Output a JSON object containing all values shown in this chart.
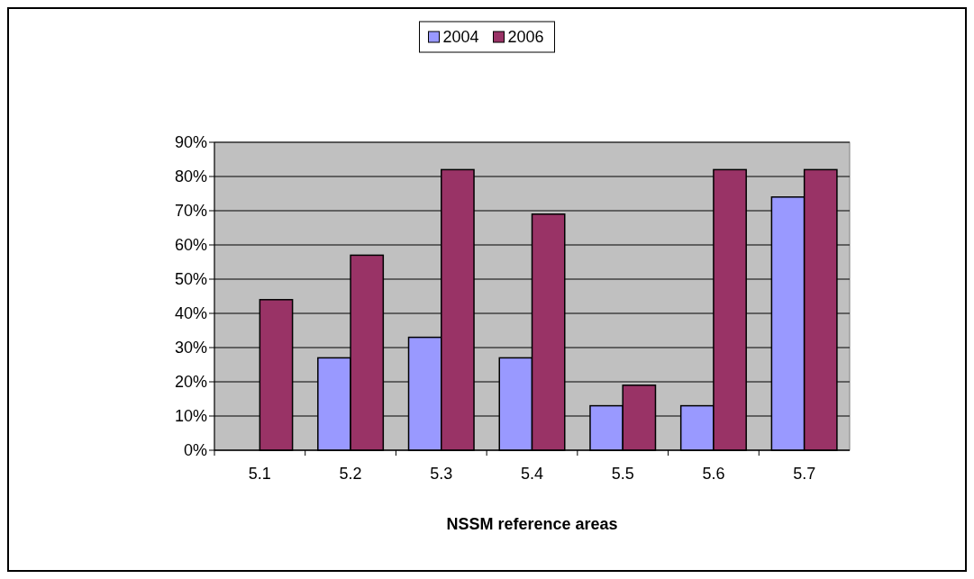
{
  "chart_data": {
    "type": "bar",
    "xlabel": "NSSM reference areas",
    "categories": [
      "5.1",
      "5.2",
      "5.3",
      "5.4",
      "5.5",
      "5.6",
      "5.7"
    ],
    "series": [
      {
        "name": "2004",
        "color": "#9999ff",
        "values": [
          0,
          27,
          33,
          27,
          13,
          13,
          74
        ]
      },
      {
        "name": "2006",
        "color": "#993366",
        "values": [
          44,
          57,
          82,
          69,
          19,
          82,
          82
        ]
      }
    ],
    "ylim": [
      0,
      90
    ],
    "yticks": [
      {
        "value": 0,
        "label": "0%"
      },
      {
        "value": 10,
        "label": "10%"
      },
      {
        "value": 20,
        "label": "20%"
      },
      {
        "value": 30,
        "label": "30%"
      },
      {
        "value": 40,
        "label": "40%"
      },
      {
        "value": 50,
        "label": "50%"
      },
      {
        "value": 60,
        "label": "60%"
      },
      {
        "value": 70,
        "label": "70%"
      },
      {
        "value": 80,
        "label": "80%"
      },
      {
        "value": 90,
        "label": "90%"
      }
    ],
    "grid": "y",
    "legend": "top"
  }
}
